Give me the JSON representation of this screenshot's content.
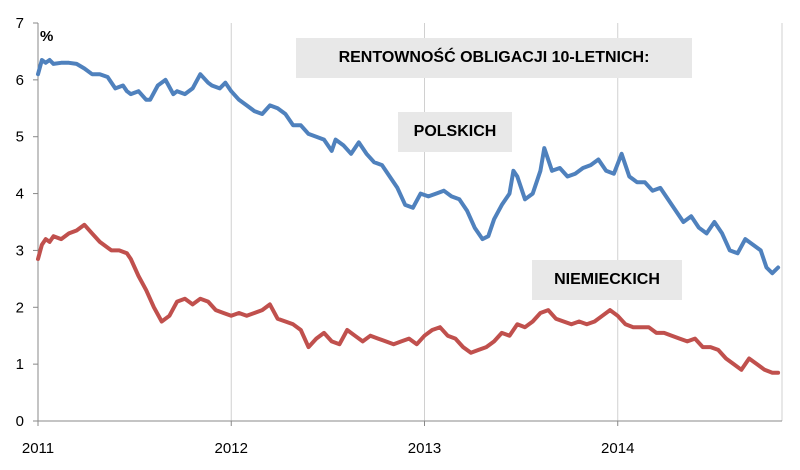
{
  "chart_data": {
    "type": "line",
    "title": "RENTOWNOŚĆ OBLIGACJI 10-LETNICH:",
    "ylabel": "%",
    "xlim": [
      2011,
      2014.85
    ],
    "ylim": [
      0,
      7
    ],
    "yticks": [
      "0",
      "1",
      "2",
      "3",
      "4",
      "5",
      "6",
      "7"
    ],
    "xticks": [
      "2011",
      "2012",
      "2013",
      "2014"
    ],
    "grid": "vertical",
    "series": [
      {
        "name": "POLSKICH",
        "color": "#4f81bd",
        "x": [
          2011.0,
          2011.02,
          2011.04,
          2011.06,
          2011.08,
          2011.12,
          2011.16,
          2011.2,
          2011.24,
          2011.28,
          2011.32,
          2011.36,
          2011.4,
          2011.44,
          2011.46,
          2011.48,
          2011.52,
          2011.56,
          2011.58,
          2011.62,
          2011.66,
          2011.7,
          2011.72,
          2011.76,
          2011.8,
          2011.84,
          2011.88,
          2011.9,
          2011.94,
          2011.97,
          2012.0,
          2012.04,
          2012.08,
          2012.12,
          2012.16,
          2012.2,
          2012.24,
          2012.28,
          2012.32,
          2012.36,
          2012.4,
          2012.44,
          2012.48,
          2012.52,
          2012.54,
          2012.58,
          2012.62,
          2012.66,
          2012.7,
          2012.74,
          2012.78,
          2012.82,
          2012.86,
          2012.9,
          2012.94,
          2012.98,
          2013.02,
          2013.06,
          2013.1,
          2013.14,
          2013.18,
          2013.22,
          2013.26,
          2013.3,
          2013.33,
          2013.36,
          2013.4,
          2013.44,
          2013.46,
          2013.48,
          2013.52,
          2013.56,
          2013.6,
          2013.62,
          2013.66,
          2013.7,
          2013.74,
          2013.78,
          2013.82,
          2013.86,
          2013.9,
          2013.94,
          2013.98,
          2014.02,
          2014.06,
          2014.1,
          2014.14,
          2014.18,
          2014.22,
          2014.26,
          2014.3,
          2014.34,
          2014.38,
          2014.42,
          2014.46,
          2014.5,
          2014.54,
          2014.58,
          2014.62,
          2014.66,
          2014.7,
          2014.74,
          2014.77,
          2014.8,
          2014.83
        ],
        "values": [
          6.1,
          6.35,
          6.3,
          6.35,
          6.28,
          6.3,
          6.3,
          6.28,
          6.2,
          6.1,
          6.1,
          6.05,
          5.85,
          5.9,
          5.8,
          5.75,
          5.8,
          5.65,
          5.65,
          5.9,
          6.0,
          5.75,
          5.8,
          5.75,
          5.85,
          6.1,
          5.95,
          5.9,
          5.85,
          5.95,
          5.8,
          5.65,
          5.55,
          5.45,
          5.4,
          5.55,
          5.5,
          5.4,
          5.2,
          5.2,
          5.05,
          5.0,
          4.95,
          4.75,
          4.95,
          4.85,
          4.7,
          4.9,
          4.7,
          4.55,
          4.5,
          4.3,
          4.1,
          3.8,
          3.75,
          4.0,
          3.95,
          4.0,
          4.05,
          3.95,
          3.9,
          3.7,
          3.4,
          3.2,
          3.25,
          3.55,
          3.8,
          4.0,
          4.4,
          4.3,
          3.9,
          4.0,
          4.4,
          4.8,
          4.4,
          4.45,
          4.3,
          4.35,
          4.45,
          4.5,
          4.6,
          4.4,
          4.35,
          4.7,
          4.3,
          4.2,
          4.2,
          4.05,
          4.1,
          3.9,
          3.7,
          3.5,
          3.6,
          3.4,
          3.3,
          3.5,
          3.3,
          3.0,
          2.95,
          3.2,
          3.1,
          3.0,
          2.7,
          2.6,
          2.7
        ]
      },
      {
        "name": "NIEMIECKICH",
        "color": "#c0504d",
        "x": [
          2011.0,
          2011.02,
          2011.04,
          2011.06,
          2011.08,
          2011.12,
          2011.16,
          2011.2,
          2011.24,
          2011.28,
          2011.32,
          2011.36,
          2011.38,
          2011.42,
          2011.46,
          2011.48,
          2011.52,
          2011.56,
          2011.6,
          2011.64,
          2011.68,
          2011.72,
          2011.76,
          2011.8,
          2011.84,
          2011.88,
          2011.92,
          2011.96,
          2012.0,
          2012.04,
          2012.08,
          2012.12,
          2012.16,
          2012.2,
          2012.24,
          2012.28,
          2012.32,
          2012.36,
          2012.4,
          2012.44,
          2012.48,
          2012.52,
          2012.56,
          2012.6,
          2012.64,
          2012.68,
          2012.72,
          2012.76,
          2012.8,
          2012.84,
          2012.88,
          2012.92,
          2012.96,
          2013.0,
          2013.04,
          2013.08,
          2013.12,
          2013.16,
          2013.2,
          2013.24,
          2013.28,
          2013.32,
          2013.36,
          2013.4,
          2013.44,
          2013.48,
          2013.52,
          2013.56,
          2013.6,
          2013.64,
          2013.68,
          2013.72,
          2013.76,
          2013.8,
          2013.84,
          2013.88,
          2013.92,
          2013.96,
          2014.0,
          2014.04,
          2014.08,
          2014.12,
          2014.16,
          2014.2,
          2014.24,
          2014.28,
          2014.32,
          2014.36,
          2014.4,
          2014.44,
          2014.48,
          2014.52,
          2014.56,
          2014.6,
          2014.64,
          2014.68,
          2014.72,
          2014.76,
          2014.8,
          2014.83
        ],
        "values": [
          2.85,
          3.1,
          3.2,
          3.15,
          3.25,
          3.2,
          3.3,
          3.35,
          3.45,
          3.3,
          3.15,
          3.05,
          3.0,
          3.0,
          2.95,
          2.85,
          2.55,
          2.3,
          2.0,
          1.75,
          1.85,
          2.1,
          2.15,
          2.05,
          2.15,
          2.1,
          1.95,
          1.9,
          1.85,
          1.9,
          1.85,
          1.9,
          1.95,
          2.05,
          1.8,
          1.75,
          1.7,
          1.6,
          1.3,
          1.45,
          1.55,
          1.4,
          1.35,
          1.6,
          1.5,
          1.4,
          1.5,
          1.45,
          1.4,
          1.35,
          1.4,
          1.45,
          1.35,
          1.5,
          1.6,
          1.65,
          1.5,
          1.45,
          1.3,
          1.2,
          1.25,
          1.3,
          1.4,
          1.55,
          1.5,
          1.7,
          1.65,
          1.75,
          1.9,
          1.95,
          1.8,
          1.75,
          1.7,
          1.75,
          1.7,
          1.75,
          1.85,
          1.95,
          1.85,
          1.7,
          1.65,
          1.65,
          1.65,
          1.55,
          1.55,
          1.5,
          1.45,
          1.4,
          1.45,
          1.3,
          1.3,
          1.25,
          1.1,
          1.0,
          0.9,
          1.1,
          1.0,
          0.9,
          0.85,
          0.85
        ]
      }
    ]
  }
}
